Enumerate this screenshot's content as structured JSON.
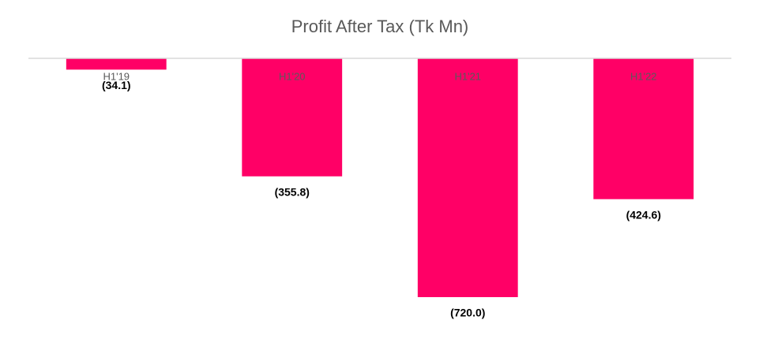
{
  "chart_data": {
    "type": "bar",
    "title": "Profit After Tax (Tk Mn)",
    "categories": [
      "H1'19",
      "H1'20",
      "H1'21",
      "H1'22"
    ],
    "values": [
      -34.1,
      -355.8,
      -720.0,
      -424.6
    ],
    "value_labels": [
      "(34.1)",
      "(355.8)",
      "(720.0)",
      "(424.6)"
    ],
    "color": "#ff0066"
  }
}
